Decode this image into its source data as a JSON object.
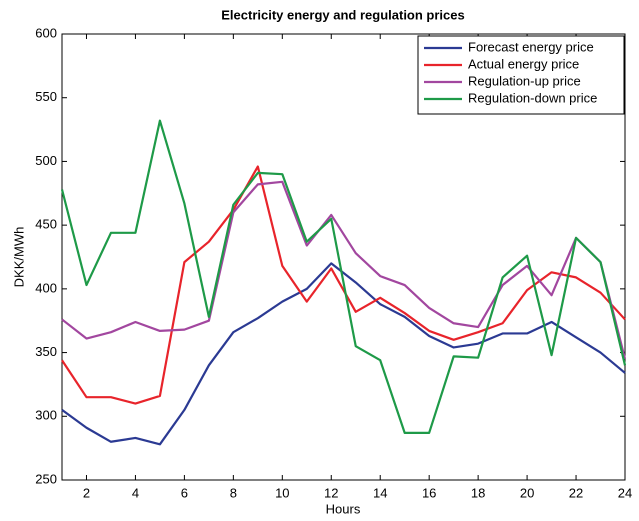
{
  "chart_data": {
    "type": "line",
    "title": "Electricity energy and regulation prices",
    "x_label": "Hours",
    "y_label": "DKK/MWh",
    "x": [
      1,
      2,
      3,
      4,
      5,
      6,
      7,
      8,
      9,
      10,
      11,
      12,
      13,
      14,
      15,
      16,
      17,
      18,
      19,
      20,
      21,
      22,
      23,
      24
    ],
    "series": [
      {
        "name": "Forecast energy price",
        "color": "#2b3a93",
        "values": [
          305,
          291,
          280,
          283,
          278,
          305,
          340,
          366,
          377,
          390,
          400,
          420,
          405,
          388,
          378,
          363,
          354,
          357,
          365,
          365,
          374,
          362,
          350,
          334
        ]
      },
      {
        "name": "Actual energy price",
        "color": "#e8242b",
        "values": [
          344,
          315,
          315,
          310,
          316,
          421,
          437,
          462,
          496,
          418,
          390,
          416,
          382,
          393,
          381,
          367,
          360,
          366,
          373,
          399,
          413,
          409,
          397,
          376
        ]
      },
      {
        "name": "Regulation-up price",
        "color": "#a2479f",
        "values": [
          376,
          361,
          366,
          374,
          367,
          368,
          375,
          460,
          482,
          484,
          434,
          458,
          428,
          410,
          403,
          385,
          373,
          370,
          403,
          418,
          395,
          440,
          421,
          345
        ]
      },
      {
        "name": "Regulation-down price",
        "color": "#1e9a48",
        "values": [
          478,
          403,
          444,
          444,
          532,
          467,
          378,
          466,
          491,
          490,
          437,
          455,
          355,
          344,
          287,
          287,
          347,
          346,
          409,
          426,
          348,
          440,
          421,
          340
        ]
      }
    ],
    "xlim": [
      1,
      24
    ],
    "xticks": [
      2,
      4,
      6,
      8,
      10,
      12,
      14,
      16,
      18,
      20,
      22,
      24
    ],
    "ylim": [
      250,
      600
    ],
    "yticks": [
      250,
      300,
      350,
      400,
      450,
      500,
      550,
      600
    ],
    "legend": "top-right"
  }
}
